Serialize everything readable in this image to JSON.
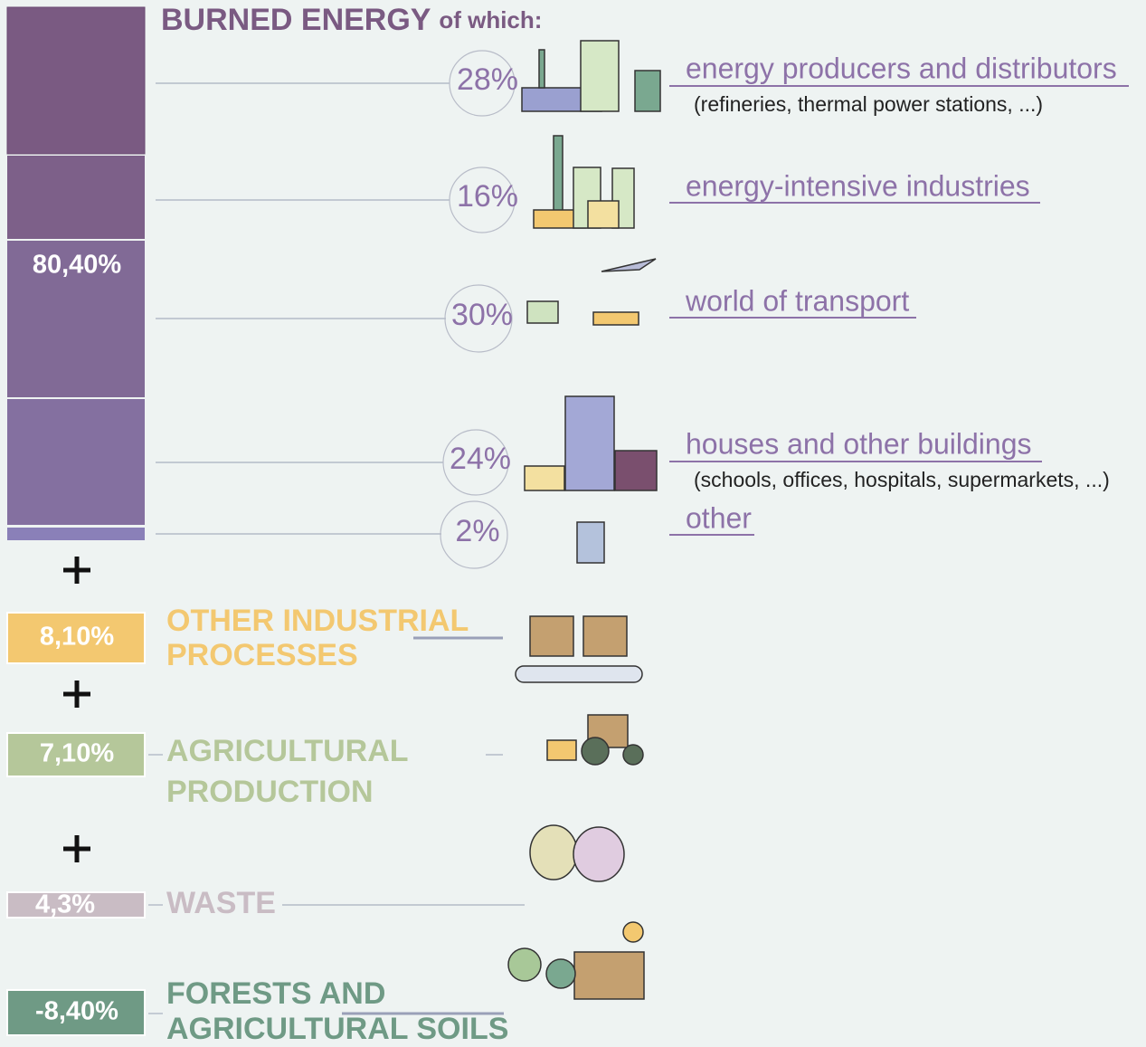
{
  "burned_energy": {
    "title": "BURNED ENERGY",
    "title_suffix": "of which:",
    "share": "80,40%",
    "items": [
      {
        "percent": "28%",
        "label": "energy producers and distributors",
        "note": "(refineries, thermal power stations, ...)"
      },
      {
        "percent": "16%",
        "label": "energy-intensive industries"
      },
      {
        "percent": "30%",
        "label": "world of transport"
      },
      {
        "percent": "24%",
        "label": "houses and other buildings",
        "note": "(schools, offices, hospitals, supermarkets, ...)"
      },
      {
        "percent": "2%",
        "label": "other"
      }
    ]
  },
  "other_sources": [
    {
      "share": "8,10%",
      "label_lines": [
        "OTHER INDUSTRIAL",
        "PROCESSES"
      ]
    },
    {
      "share": "7,10%",
      "label_lines": [
        "AGRICULTURAL",
        "PRODUCTION"
      ]
    },
    {
      "share": "4,3%",
      "label_lines": [
        "WASTE"
      ]
    },
    {
      "share": "-8,40%",
      "label_lines": [
        "FORESTS AND",
        "AGRICULTURAL SOILS"
      ]
    }
  ]
}
